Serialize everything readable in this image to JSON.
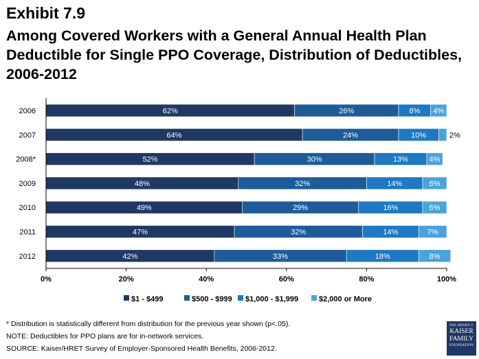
{
  "exhibit": "Exhibit 7.9",
  "title": "Among Covered Workers with a General Annual Health Plan Deductible for Single PPO Coverage, Distribution of Deductibles, 2006-2012",
  "colors": [
    "#1f3864",
    "#1d5c99",
    "#1e78c2",
    "#4ba3db"
  ],
  "chart_data": {
    "type": "bar",
    "orientation": "horizontal",
    "stacked": true,
    "categories": [
      "2006",
      "2007",
      "2008*",
      "2009",
      "2010",
      "2011",
      "2012"
    ],
    "series": [
      {
        "name": "$1 - $499",
        "values": [
          62,
          64,
          52,
          48,
          49,
          47,
          42
        ],
        "labels": [
          "62%",
          "64%",
          "52%",
          "48%",
          "49%",
          "47%",
          "42%"
        ]
      },
      {
        "name": "$500 - $999",
        "values": [
          26,
          24,
          30,
          32,
          29,
          32,
          33
        ],
        "labels": [
          "26%",
          "24%",
          "30%",
          "32%",
          "29%",
          "32%",
          "33%"
        ]
      },
      {
        "name": "$1,000 - $1,999",
        "values": [
          8,
          10,
          13,
          14,
          16,
          14,
          18
        ],
        "labels": [
          "8%",
          "10%",
          "13%",
          "14%",
          "16%",
          "14%",
          "18%"
        ]
      },
      {
        "name": "$2,000 or More",
        "values": [
          4,
          2,
          4,
          6,
          6,
          7,
          8
        ],
        "labels": [
          "4%",
          "2%",
          "4%",
          "6%",
          "6%",
          "7%",
          "8%"
        ]
      }
    ],
    "xlim": [
      0,
      100
    ],
    "xticks": [
      "0%",
      "20%",
      "40%",
      "60%",
      "80%",
      "100%"
    ],
    "legend_position": "bottom"
  },
  "notes": [
    "* Distribution is statistically different from distribution for the previous year shown (p<.05).",
    "NOTE: Deductibles for PPO plans are for in-network services.",
    "SOURCE: Kaiser/HRET Survey of Employer-Sponsored Health Benefits, 2006-2012."
  ],
  "logo": {
    "line1": "THE HENRY J.",
    "line2": "KAISER",
    "line3": "FAMILY",
    "line4": "FOUNDATION"
  }
}
